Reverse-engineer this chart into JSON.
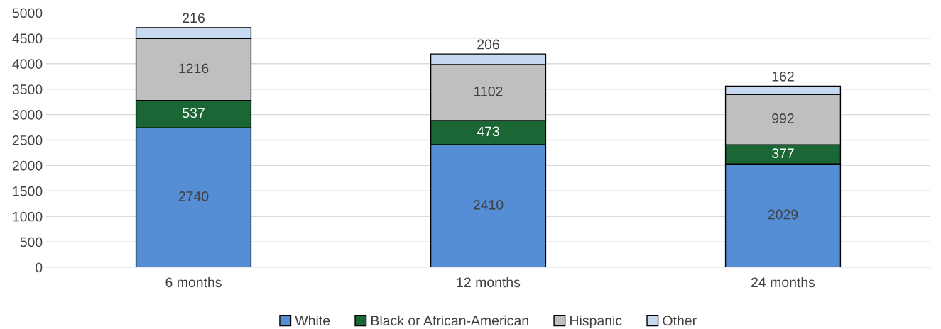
{
  "chart_data": {
    "type": "bar",
    "stacked": true,
    "categories": [
      "6 months",
      "12 months",
      "24 months"
    ],
    "series": [
      {
        "name": "White",
        "color": "#558ed5",
        "values": [
          2740,
          2410,
          2029
        ]
      },
      {
        "name": "Black or African-American",
        "color": "#1a6634",
        "values": [
          537,
          473,
          377
        ]
      },
      {
        "name": "Hispanic",
        "color": "#bfbfbf",
        "values": [
          1216,
          1102,
          992
        ]
      },
      {
        "name": "Other",
        "color": "#c6d9f1",
        "values": [
          216,
          206,
          162
        ]
      }
    ],
    "ylim": [
      0,
      5000
    ],
    "yticks": [
      0,
      500,
      1000,
      1500,
      2000,
      2500,
      3000,
      3500,
      4000,
      4500,
      5000
    ],
    "grid": "y",
    "legend": "bottom",
    "data_labels": true
  }
}
